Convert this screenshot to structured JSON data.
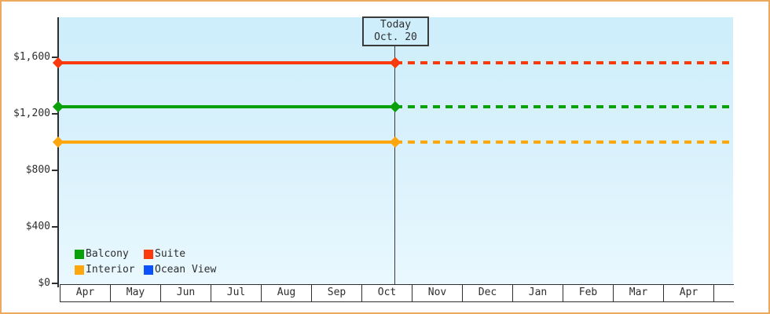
{
  "frame": {
    "border_color": "#eba95e",
    "background": "#ffffff"
  },
  "chart_data": {
    "type": "line",
    "title": "",
    "x_categories": [
      "Apr",
      "May",
      "Jun",
      "Jul",
      "Aug",
      "Sep",
      "Oct",
      "Nov",
      "Dec",
      "Jan",
      "Feb",
      "Mar",
      "Apr"
    ],
    "y_ticks": [
      {
        "value": 0,
        "label": "$0"
      },
      {
        "value": 400,
        "label": "$400"
      },
      {
        "value": 800,
        "label": "$800"
      },
      {
        "value": 1200,
        "label": "$1,200"
      },
      {
        "value": 1600,
        "label": "$1,600"
      }
    ],
    "ylim": [
      0,
      1700
    ],
    "grid": false,
    "legend_position": "bottom-left inside plot",
    "series": [
      {
        "name": "Balcony",
        "color": "#0aa00a",
        "value": 1250
      },
      {
        "name": "Suite",
        "color": "#fa3a0d",
        "value": 1560
      },
      {
        "name": "Interior",
        "color": "#fda60e",
        "value": 1000
      },
      {
        "name": "Ocean View",
        "color": "#0b52fa",
        "value": null
      }
    ],
    "today_marker": {
      "line1": "Today",
      "line2": "Oct. 20",
      "month": "Oct",
      "day": 20
    },
    "line_style": {
      "before_today": "solid",
      "after_today": "dashed",
      "marker": "diamond"
    }
  },
  "legend": {
    "items": [
      "Balcony",
      "Suite",
      "Interior",
      "Ocean View"
    ]
  }
}
